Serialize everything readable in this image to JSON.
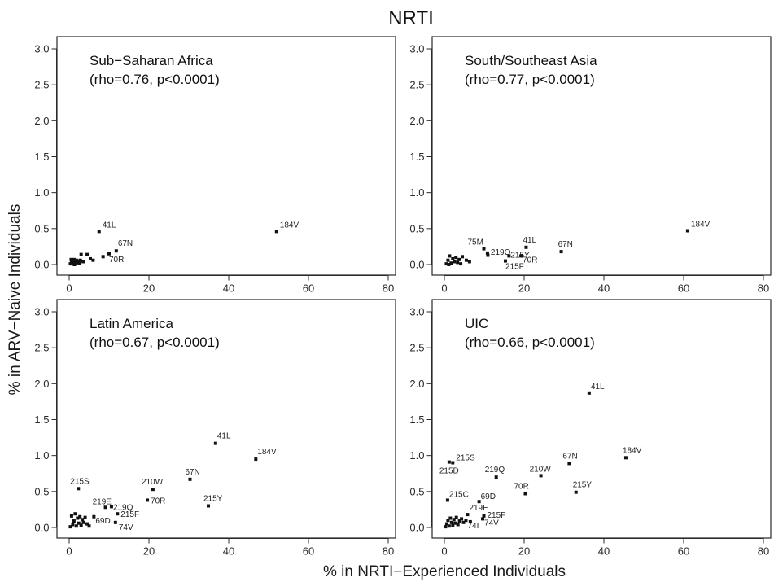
{
  "title": "NRTI",
  "xlabel": "% in NRTI−Experienced Individuals",
  "ylabel": "% in ARV−Naive Individuals",
  "chart_data": [
    {
      "type": "scatter",
      "title": "Sub−Saharan Africa",
      "subtitle": "(rho=0.76, p<0.0001)",
      "xlim": [
        0,
        80
      ],
      "ylim": [
        0,
        3.0
      ],
      "xticks": [
        "0",
        "20",
        "40",
        "60",
        "80"
      ],
      "yticks": [
        "0.0",
        "0.5",
        "1.0",
        "1.5",
        "2.0",
        "2.5",
        "3.0"
      ],
      "points": [
        {
          "x": 52.0,
          "y": 0.46,
          "label": "184V"
        },
        {
          "x": 7.5,
          "y": 0.46,
          "label": "41L"
        },
        {
          "x": 11.8,
          "y": 0.19,
          "label": "67N"
        },
        {
          "x": 10.0,
          "y": 0.15,
          "label": "70R"
        },
        {
          "x": 3.0,
          "y": 0.14,
          "label": ""
        },
        {
          "x": 4.5,
          "y": 0.14,
          "label": ""
        },
        {
          "x": 8.5,
          "y": 0.11,
          "label": ""
        },
        {
          "x": 5.3,
          "y": 0.08,
          "label": ""
        },
        {
          "x": 6.0,
          "y": 0.06,
          "label": ""
        },
        {
          "x": 3.5,
          "y": 0.04,
          "label": ""
        },
        {
          "x": 0.3,
          "y": 0.01,
          "label": ""
        },
        {
          "x": 0.6,
          "y": 0.03,
          "label": ""
        },
        {
          "x": 0.8,
          "y": 0.05,
          "label": ""
        },
        {
          "x": 1.0,
          "y": 0.02,
          "label": ""
        },
        {
          "x": 1.2,
          "y": 0.07,
          "label": ""
        },
        {
          "x": 1.4,
          "y": 0.04,
          "label": ""
        },
        {
          "x": 1.6,
          "y": 0.01,
          "label": ""
        },
        {
          "x": 1.8,
          "y": 0.06,
          "label": ""
        },
        {
          "x": 2.0,
          "y": 0.03,
          "label": ""
        },
        {
          "x": 2.2,
          "y": 0.05,
          "label": ""
        },
        {
          "x": 2.5,
          "y": 0.02,
          "label": ""
        },
        {
          "x": 0.5,
          "y": 0.07,
          "label": ""
        },
        {
          "x": 1.3,
          "y": 0.0,
          "label": ""
        },
        {
          "x": 2.8,
          "y": 0.06,
          "label": ""
        }
      ]
    },
    {
      "type": "scatter",
      "title": "South/Southeast Asia",
      "subtitle": "(rho=0.77, p<0.0001)",
      "xlim": [
        0,
        80
      ],
      "ylim": [
        0,
        3.0
      ],
      "xticks": [
        "0",
        "20",
        "40",
        "60",
        "80"
      ],
      "yticks": [
        "0.0",
        "0.5",
        "1.0",
        "1.5",
        "2.0",
        "2.5",
        "3.0"
      ],
      "points": [
        {
          "x": 61.0,
          "y": 0.47,
          "label": "184V"
        },
        {
          "x": 20.5,
          "y": 0.24,
          "label": "41L"
        },
        {
          "x": 29.3,
          "y": 0.18,
          "label": "67N"
        },
        {
          "x": 9.9,
          "y": 0.22,
          "label": "75M"
        },
        {
          "x": 10.8,
          "y": 0.16,
          "label": "219Q"
        },
        {
          "x": 16.2,
          "y": 0.12,
          "label": "215Y"
        },
        {
          "x": 19.2,
          "y": 0.12,
          "label": "70R"
        },
        {
          "x": 15.3,
          "y": 0.05,
          "label": "215F"
        },
        {
          "x": 10.9,
          "y": 0.13,
          "label": ""
        },
        {
          "x": 0.5,
          "y": 0.01,
          "label": ""
        },
        {
          "x": 0.9,
          "y": 0.06,
          "label": ""
        },
        {
          "x": 1.3,
          "y": 0.12,
          "label": ""
        },
        {
          "x": 1.7,
          "y": 0.02,
          "label": ""
        },
        {
          "x": 2.1,
          "y": 0.08,
          "label": ""
        },
        {
          "x": 2.5,
          "y": 0.04,
          "label": ""
        },
        {
          "x": 2.9,
          "y": 0.1,
          "label": ""
        },
        {
          "x": 3.3,
          "y": 0.03,
          "label": ""
        },
        {
          "x": 3.7,
          "y": 0.07,
          "label": ""
        },
        {
          "x": 4.1,
          "y": 0.01,
          "label": ""
        },
        {
          "x": 4.5,
          "y": 0.11,
          "label": ""
        },
        {
          "x": 5.5,
          "y": 0.06,
          "label": ""
        },
        {
          "x": 6.3,
          "y": 0.04,
          "label": ""
        },
        {
          "x": 1.1,
          "y": 0.0,
          "label": ""
        }
      ]
    },
    {
      "type": "scatter",
      "title": "Latin America",
      "subtitle": "(rho=0.67, p<0.0001)",
      "xlim": [
        0,
        80
      ],
      "ylim": [
        0,
        3.0
      ],
      "xticks": [
        "0",
        "20",
        "40",
        "60",
        "80"
      ],
      "yticks": [
        "0.0",
        "0.5",
        "1.0",
        "1.5",
        "2.0",
        "2.5",
        "3.0"
      ],
      "points": [
        {
          "x": 36.7,
          "y": 1.17,
          "label": "41L"
        },
        {
          "x": 46.8,
          "y": 0.95,
          "label": "184V"
        },
        {
          "x": 30.3,
          "y": 0.67,
          "label": "67N"
        },
        {
          "x": 21.0,
          "y": 0.53,
          "label": "210W"
        },
        {
          "x": 2.3,
          "y": 0.54,
          "label": "215S"
        },
        {
          "x": 19.6,
          "y": 0.38,
          "label": "70R"
        },
        {
          "x": 34.9,
          "y": 0.3,
          "label": "215Y"
        },
        {
          "x": 9.1,
          "y": 0.28,
          "label": "219E"
        },
        {
          "x": 10.6,
          "y": 0.29,
          "label": "219Q"
        },
        {
          "x": 12.1,
          "y": 0.19,
          "label": "215F"
        },
        {
          "x": 6.2,
          "y": 0.15,
          "label": "69D"
        },
        {
          "x": 11.6,
          "y": 0.07,
          "label": "74V"
        },
        {
          "x": 0.3,
          "y": 0.01,
          "label": ""
        },
        {
          "x": 0.6,
          "y": 0.16,
          "label": ""
        },
        {
          "x": 0.9,
          "y": 0.04,
          "label": ""
        },
        {
          "x": 1.2,
          "y": 0.09,
          "label": ""
        },
        {
          "x": 1.5,
          "y": 0.19,
          "label": ""
        },
        {
          "x": 1.8,
          "y": 0.02,
          "label": ""
        },
        {
          "x": 2.1,
          "y": 0.13,
          "label": ""
        },
        {
          "x": 2.4,
          "y": 0.06,
          "label": ""
        },
        {
          "x": 2.7,
          "y": 0.15,
          "label": ""
        },
        {
          "x": 3.0,
          "y": 0.03,
          "label": ""
        },
        {
          "x": 3.3,
          "y": 0.11,
          "label": ""
        },
        {
          "x": 3.6,
          "y": 0.07,
          "label": ""
        },
        {
          "x": 4.0,
          "y": 0.14,
          "label": ""
        },
        {
          "x": 4.5,
          "y": 0.05,
          "label": ""
        },
        {
          "x": 5.0,
          "y": 0.02,
          "label": ""
        }
      ]
    },
    {
      "type": "scatter",
      "title": "UIC",
      "subtitle": "(rho=0.66, p<0.0001)",
      "xlim": [
        0,
        80
      ],
      "ylim": [
        0,
        3.0
      ],
      "xticks": [
        "0",
        "20",
        "40",
        "60",
        "80"
      ],
      "yticks": [
        "0.0",
        "0.5",
        "1.0",
        "1.5",
        "2.0",
        "2.5",
        "3.0"
      ],
      "points": [
        {
          "x": 36.3,
          "y": 1.87,
          "label": "41L"
        },
        {
          "x": 45.5,
          "y": 0.97,
          "label": "184V"
        },
        {
          "x": 31.3,
          "y": 0.89,
          "label": "67N"
        },
        {
          "x": 1.2,
          "y": 0.91,
          "label": "215D"
        },
        {
          "x": 2.1,
          "y": 0.9,
          "label": "215S"
        },
        {
          "x": 24.2,
          "y": 0.72,
          "label": "210W"
        },
        {
          "x": 13.0,
          "y": 0.7,
          "label": "219Q"
        },
        {
          "x": 20.3,
          "y": 0.47,
          "label": "70R"
        },
        {
          "x": 33.0,
          "y": 0.49,
          "label": "215Y"
        },
        {
          "x": 0.8,
          "y": 0.38,
          "label": "215C"
        },
        {
          "x": 8.7,
          "y": 0.36,
          "label": "69D"
        },
        {
          "x": 5.8,
          "y": 0.18,
          "label": "219E"
        },
        {
          "x": 9.9,
          "y": 0.16,
          "label": "215F"
        },
        {
          "x": 9.6,
          "y": 0.12,
          "label": "74V"
        },
        {
          "x": 5.4,
          "y": 0.1,
          "label": "74I"
        },
        {
          "x": 0.3,
          "y": 0.01,
          "label": ""
        },
        {
          "x": 0.6,
          "y": 0.05,
          "label": ""
        },
        {
          "x": 0.9,
          "y": 0.1,
          "label": ""
        },
        {
          "x": 1.2,
          "y": 0.02,
          "label": ""
        },
        {
          "x": 1.5,
          "y": 0.13,
          "label": ""
        },
        {
          "x": 1.8,
          "y": 0.07,
          "label": ""
        },
        {
          "x": 2.1,
          "y": 0.03,
          "label": ""
        },
        {
          "x": 2.4,
          "y": 0.11,
          "label": ""
        },
        {
          "x": 2.7,
          "y": 0.06,
          "label": ""
        },
        {
          "x": 3.0,
          "y": 0.14,
          "label": ""
        },
        {
          "x": 3.4,
          "y": 0.04,
          "label": ""
        },
        {
          "x": 3.8,
          "y": 0.09,
          "label": ""
        },
        {
          "x": 4.3,
          "y": 0.12,
          "label": ""
        },
        {
          "x": 4.8,
          "y": 0.07,
          "label": ""
        },
        {
          "x": 6.5,
          "y": 0.08,
          "label": ""
        }
      ]
    }
  ]
}
